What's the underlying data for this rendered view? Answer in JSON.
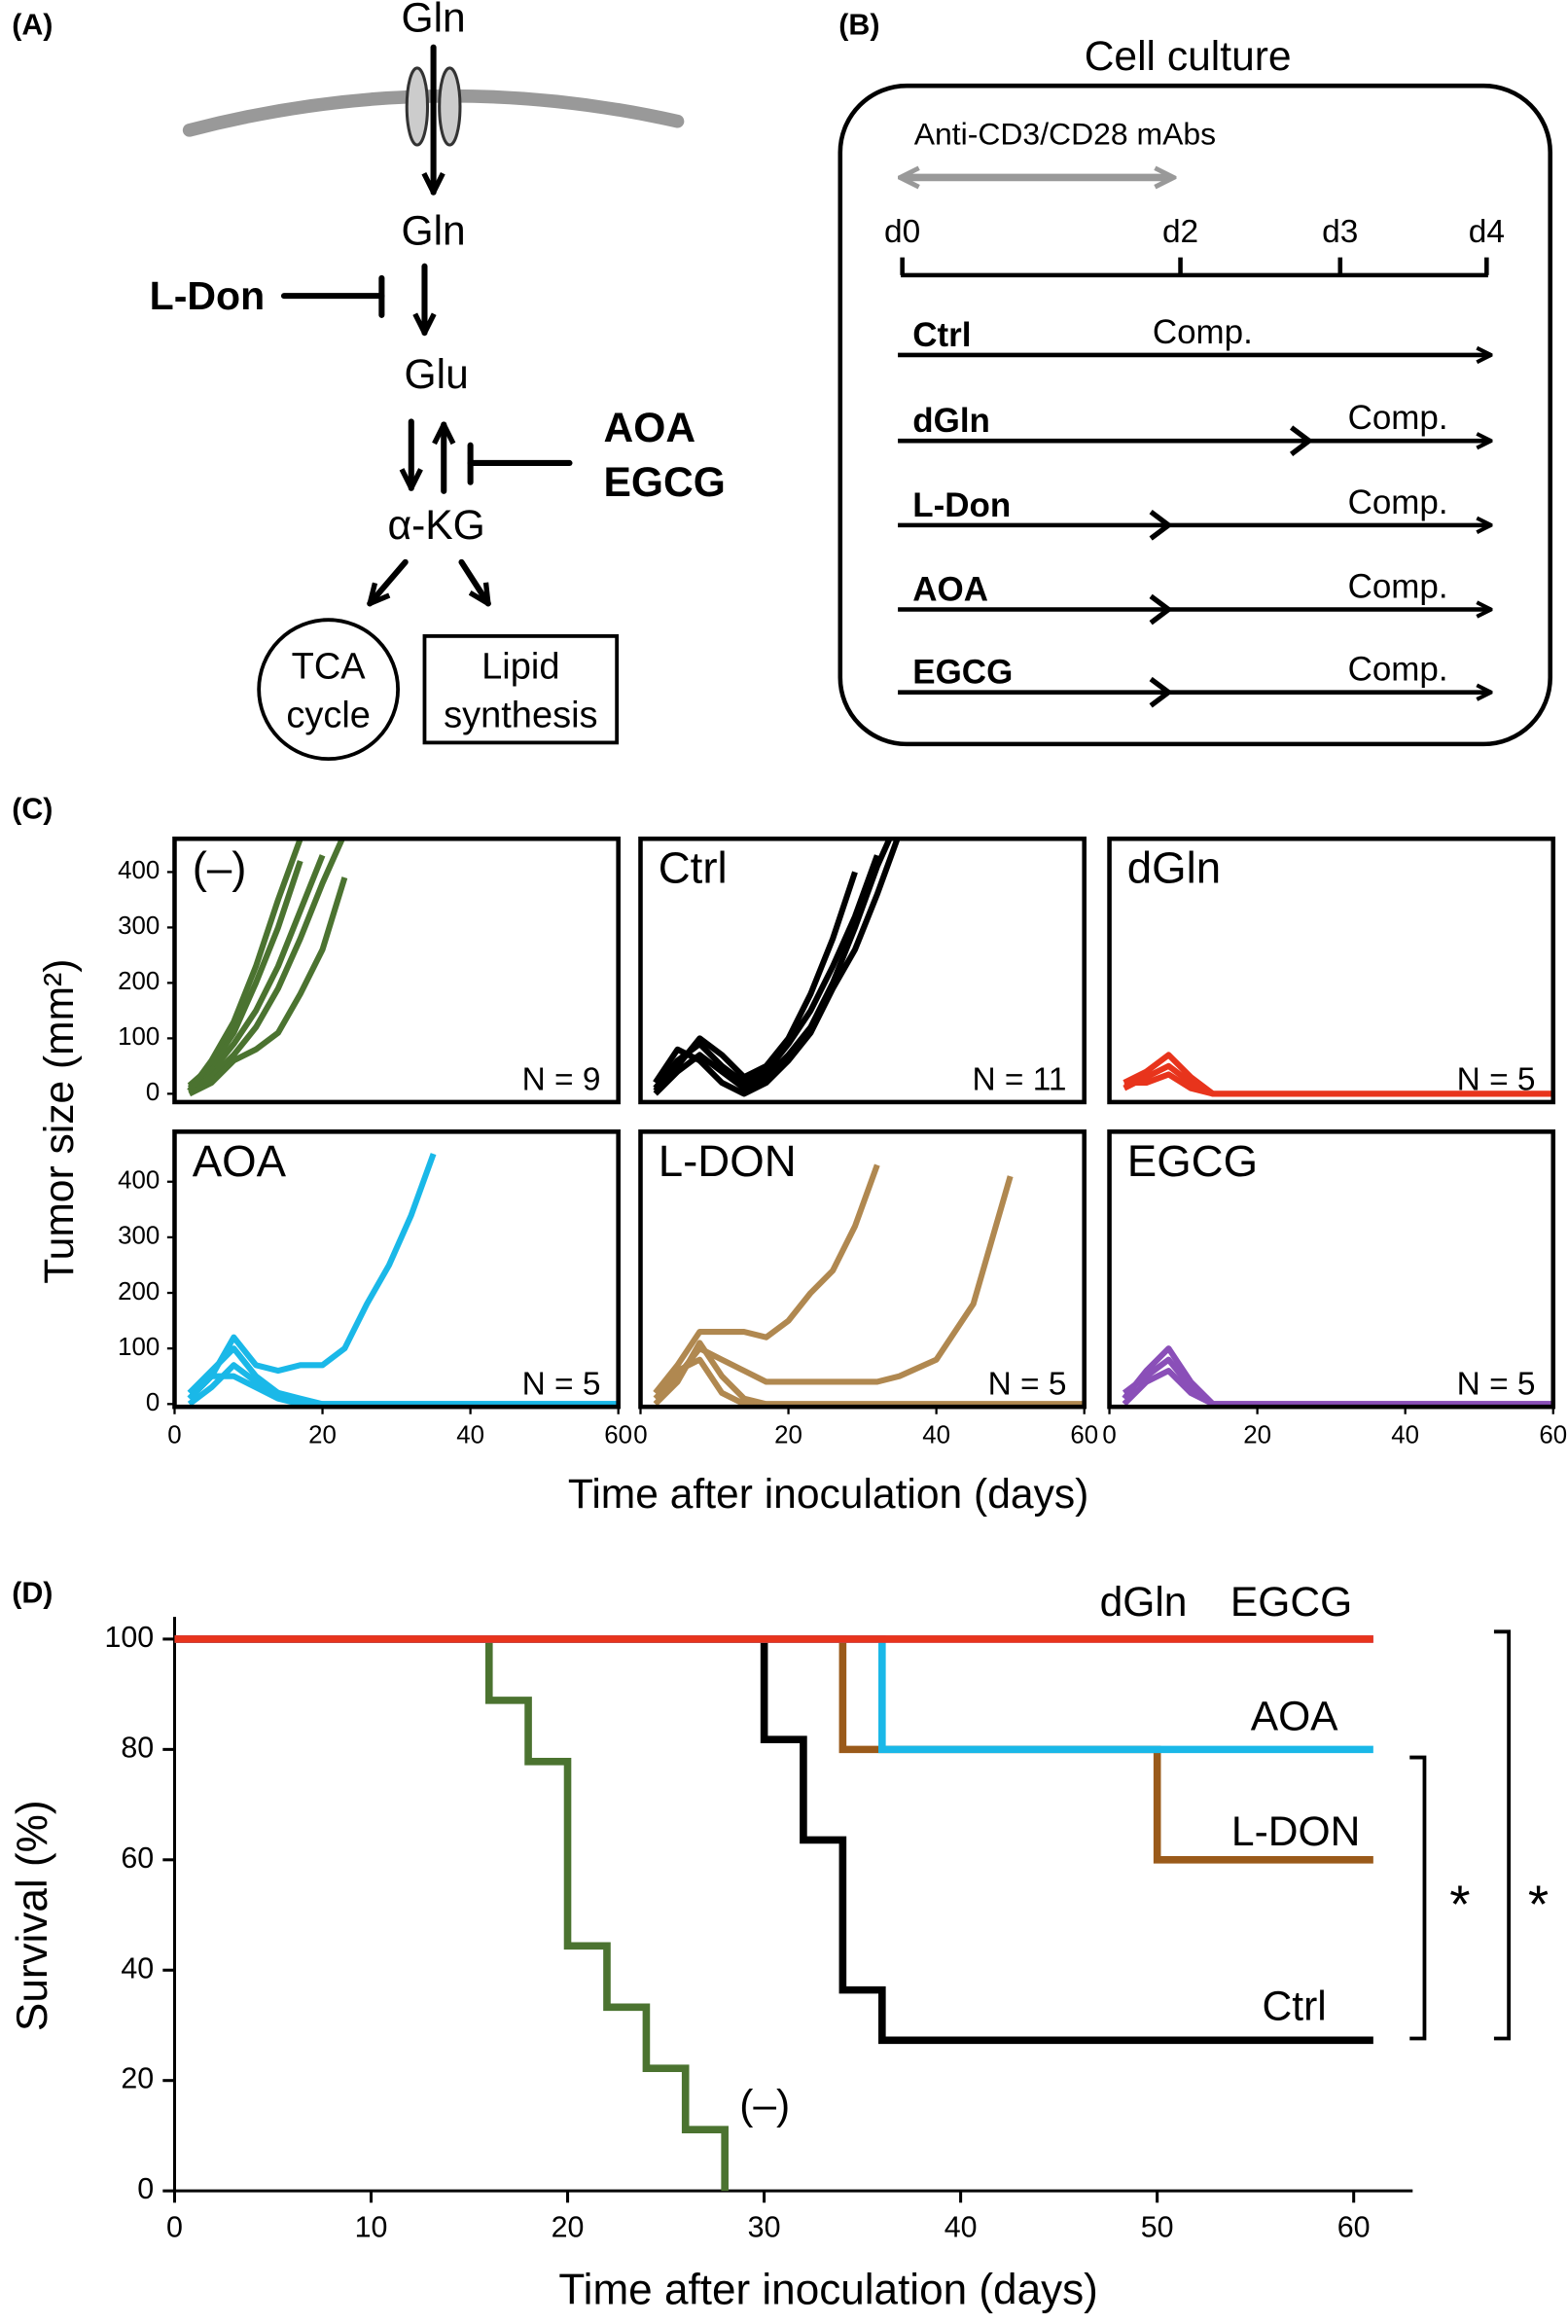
{
  "panel_a": {
    "label": "(A)",
    "gln_outside": "Gln",
    "gln_inside": "Gln",
    "inhibitor_1": "L-Don",
    "glu": "Glu",
    "inhibitors_2": [
      "AOA",
      "EGCG"
    ],
    "akg": "α-KG",
    "tca": [
      "TCA",
      "cycle"
    ],
    "lipid": [
      "Lipid",
      "synthesis"
    ]
  },
  "panel_b": {
    "label": "(B)",
    "title": "Cell culture",
    "stimulation": "Anti-CD3/CD28 mAbs",
    "days": [
      "d0",
      "d2",
      "d3",
      "d4"
    ],
    "rows": [
      {
        "name": "Ctrl",
        "note": "Comp."
      },
      {
        "name": "dGln",
        "note": "Comp."
      },
      {
        "name": "L-Don",
        "note": "Comp."
      },
      {
        "name": "AOA",
        "note": "Comp."
      },
      {
        "name": "EGCG",
        "note": "Comp."
      }
    ]
  },
  "panel_c": {
    "label": "(C)",
    "ylabel": "Tumor size (mm²)",
    "xlabel": "Time after inoculation (days)"
  },
  "panel_d": {
    "label": "(D)"
  },
  "chart_data": [
    {
      "type": "line",
      "title": "(–)",
      "annotation": "N = 9",
      "xlim": [
        0,
        60
      ],
      "ylim": [
        -15,
        460
      ],
      "yticks": [
        0,
        100,
        200,
        300,
        400
      ],
      "x": [
        2,
        5,
        8,
        11,
        14,
        17,
        20,
        23,
        26,
        29,
        32,
        35,
        40,
        45,
        50,
        55,
        60
      ],
      "series": [
        {
          "color": "#4b7330",
          "values": [
            10,
            40,
            90,
            150,
            230,
            330,
            430,
            null,
            null,
            null,
            null,
            null,
            null,
            null,
            null,
            null,
            null
          ]
        },
        {
          "color": "#4b7330",
          "values": [
            5,
            30,
            70,
            120,
            190,
            280,
            380,
            470,
            null,
            null,
            null,
            null,
            null,
            null,
            null,
            null,
            null
          ]
        },
        {
          "color": "#4b7330",
          "values": [
            15,
            50,
            110,
            200,
            300,
            420,
            null,
            null,
            null,
            null,
            null,
            null,
            null,
            null,
            null,
            null,
            null
          ]
        },
        {
          "color": "#4b7330",
          "values": [
            0,
            20,
            60,
            80,
            110,
            180,
            260,
            390,
            null,
            null,
            null,
            null,
            null,
            null,
            null,
            null,
            null
          ]
        },
        {
          "color": "#4b7330",
          "values": [
            5,
            60,
            130,
            230,
            350,
            460,
            null,
            null,
            null,
            null,
            null,
            null,
            null,
            null,
            null,
            null,
            null
          ]
        }
      ]
    },
    {
      "type": "line",
      "title": "Ctrl",
      "annotation": "N = 11",
      "xlim": [
        0,
        60
      ],
      "ylim": [
        -15,
        460
      ],
      "x": [
        2,
        5,
        8,
        11,
        14,
        17,
        20,
        23,
        26,
        29,
        32,
        35,
        40,
        45,
        50,
        55,
        60
      ],
      "series": [
        {
          "color": "#000000",
          "values": [
            10,
            60,
            90,
            50,
            20,
            40,
            90,
            150,
            230,
            320,
            430,
            null,
            null,
            null,
            null,
            null,
            null
          ]
        },
        {
          "color": "#000000",
          "values": [
            0,
            40,
            70,
            40,
            10,
            30,
            70,
            120,
            200,
            300,
            410,
            500,
            null,
            null,
            null,
            null,
            null
          ]
        },
        {
          "color": "#000000",
          "values": [
            20,
            80,
            60,
            20,
            0,
            20,
            60,
            110,
            190,
            260,
            360,
            470,
            null,
            null,
            null,
            null,
            null
          ]
        },
        {
          "color": "#000000",
          "values": [
            5,
            50,
            100,
            70,
            30,
            50,
            100,
            180,
            280,
            400,
            null,
            null,
            null,
            null,
            null,
            null,
            null
          ]
        }
      ]
    },
    {
      "type": "line",
      "title": "dGln",
      "annotation": "N = 5",
      "xlim": [
        0,
        60
      ],
      "ylim": [
        -15,
        460
      ],
      "x": [
        2,
        5,
        8,
        11,
        14,
        17,
        20,
        23,
        26,
        29,
        32,
        35,
        40,
        45,
        50,
        55,
        60
      ],
      "series": [
        {
          "color": "#e8341c",
          "values": [
            20,
            40,
            70,
            30,
            0,
            0,
            0,
            0,
            0,
            0,
            0,
            0,
            0,
            0,
            0,
            0,
            0
          ]
        },
        {
          "color": "#e8341c",
          "values": [
            10,
            30,
            50,
            20,
            0,
            0,
            0,
            0,
            0,
            0,
            0,
            0,
            0,
            0,
            0,
            0,
            0
          ]
        },
        {
          "color": "#e8341c",
          "values": [
            20,
            20,
            35,
            10,
            0,
            0,
            0,
            0,
            0,
            0,
            0,
            0,
            0,
            0,
            0,
            0,
            0
          ]
        }
      ]
    },
    {
      "type": "line",
      "title": "AOA",
      "annotation": "N = 5",
      "xlim": [
        0,
        60
      ],
      "ylim": [
        -5,
        490
      ],
      "yticks": [
        0,
        100,
        200,
        300,
        400
      ],
      "xticks": [
        0,
        20,
        40,
        60
      ],
      "x": [
        2,
        5,
        8,
        11,
        14,
        17,
        20,
        23,
        26,
        29,
        32,
        35,
        40,
        45,
        50,
        55,
        60
      ],
      "series": [
        {
          "color": "#1ab8e8",
          "values": [
            10,
            50,
            120,
            70,
            60,
            70,
            70,
            100,
            180,
            250,
            340,
            450,
            null,
            null,
            null,
            null,
            null
          ]
        },
        {
          "color": "#1ab8e8",
          "values": [
            20,
            60,
            100,
            50,
            20,
            10,
            0,
            0,
            0,
            0,
            0,
            0,
            0,
            0,
            0,
            0,
            0
          ]
        },
        {
          "color": "#1ab8e8",
          "values": [
            0,
            30,
            70,
            40,
            20,
            0,
            0,
            0,
            0,
            0,
            0,
            0,
            0,
            0,
            0,
            0,
            0
          ]
        },
        {
          "color": "#1ab8e8",
          "values": [
            10,
            50,
            50,
            30,
            10,
            0,
            0,
            0,
            0,
            0,
            0,
            0,
            0,
            0,
            0,
            0,
            0
          ]
        }
      ]
    },
    {
      "type": "line",
      "title": "L-DON",
      "annotation": "N = 5",
      "xlim": [
        0,
        60
      ],
      "ylim": [
        -5,
        490
      ],
      "xticks": [
        0,
        20,
        40,
        60
      ],
      "x": [
        2,
        5,
        8,
        11,
        14,
        17,
        20,
        23,
        26,
        29,
        32,
        35,
        40,
        45,
        50,
        55,
        60
      ],
      "series": [
        {
          "color": "#b08850",
          "values": [
            20,
            70,
            130,
            130,
            130,
            120,
            150,
            200,
            240,
            320,
            430,
            null,
            null,
            null,
            null,
            null,
            null
          ]
        },
        {
          "color": "#b08850",
          "values": [
            10,
            50,
            100,
            80,
            60,
            40,
            40,
            40,
            40,
            40,
            40,
            50,
            80,
            180,
            410,
            null,
            null
          ]
        },
        {
          "color": "#b08850",
          "values": [
            20,
            60,
            80,
            20,
            0,
            0,
            0,
            0,
            0,
            0,
            0,
            0,
            0,
            0,
            0,
            0,
            0
          ]
        },
        {
          "color": "#b08850",
          "values": [
            0,
            40,
            110,
            50,
            10,
            0,
            0,
            0,
            0,
            0,
            0,
            0,
            0,
            0,
            0,
            0,
            0
          ]
        }
      ]
    },
    {
      "type": "line",
      "title": "EGCG",
      "annotation": "N = 5",
      "xlim": [
        0,
        60
      ],
      "ylim": [
        -5,
        490
      ],
      "xticks": [
        0,
        20,
        40,
        60
      ],
      "x": [
        2,
        5,
        8,
        11,
        14,
        17,
        20,
        23,
        26,
        29,
        32,
        35,
        40,
        45,
        50,
        55,
        60
      ],
      "series": [
        {
          "color": "#8a4fb8",
          "values": [
            10,
            60,
            100,
            40,
            0,
            0,
            0,
            0,
            0,
            0,
            0,
            0,
            0,
            0,
            0,
            0,
            0
          ]
        },
        {
          "color": "#8a4fb8",
          "values": [
            20,
            50,
            80,
            30,
            0,
            0,
            0,
            0,
            0,
            0,
            0,
            0,
            0,
            0,
            0,
            0,
            0
          ]
        },
        {
          "color": "#8a4fb8",
          "values": [
            0,
            40,
            60,
            20,
            0,
            0,
            0,
            0,
            0,
            0,
            0,
            0,
            0,
            0,
            0,
            0,
            0
          ]
        }
      ]
    },
    {
      "type": "step",
      "xlabel": "Time after inoculation (days)",
      "ylabel": "Survival (%)",
      "xlim": [
        0,
        63
      ],
      "xticks": [
        0,
        10,
        20,
        30,
        40,
        50,
        60
      ],
      "ylim": [
        0,
        100
      ],
      "yticks": [
        0,
        20,
        40,
        60,
        80,
        100
      ],
      "x": [
        0,
        16,
        18,
        20,
        22,
        24,
        26,
        28,
        30,
        32,
        34,
        36,
        50,
        61
      ],
      "series": [
        {
          "name": "(–)",
          "color": "#4b7330",
          "values": [
            100,
            88.9,
            77.8,
            44.4,
            33.3,
            22.2,
            11.1,
            0,
            null,
            null,
            null,
            null,
            null,
            null
          ]
        },
        {
          "name": "Ctrl",
          "color": "#000000",
          "values": [
            100,
            100,
            100,
            100,
            100,
            100,
            100,
            100,
            81.8,
            63.6,
            36.4,
            27.3,
            27.3,
            27.3
          ]
        },
        {
          "name": "L-DON",
          "color": "#9a5a1a",
          "values": [
            100,
            100,
            100,
            100,
            100,
            100,
            100,
            100,
            100,
            100,
            80,
            80,
            60,
            60
          ]
        },
        {
          "name": "AOA",
          "color": "#1ab8e8",
          "values": [
            100,
            100,
            100,
            100,
            100,
            100,
            100,
            100,
            100,
            100,
            100,
            80,
            80,
            80
          ]
        },
        {
          "name": "EGCG",
          "color": "#8a4fb8",
          "values": [
            100,
            100,
            100,
            100,
            100,
            100,
            100,
            100,
            100,
            100,
            100,
            100,
            100,
            100
          ]
        },
        {
          "name": "dGln",
          "color": "#e8341c",
          "values": [
            100,
            100,
            100,
            100,
            100,
            100,
            100,
            100,
            100,
            100,
            100,
            100,
            100,
            100
          ]
        }
      ],
      "annotations": [
        "*",
        "*"
      ]
    }
  ]
}
